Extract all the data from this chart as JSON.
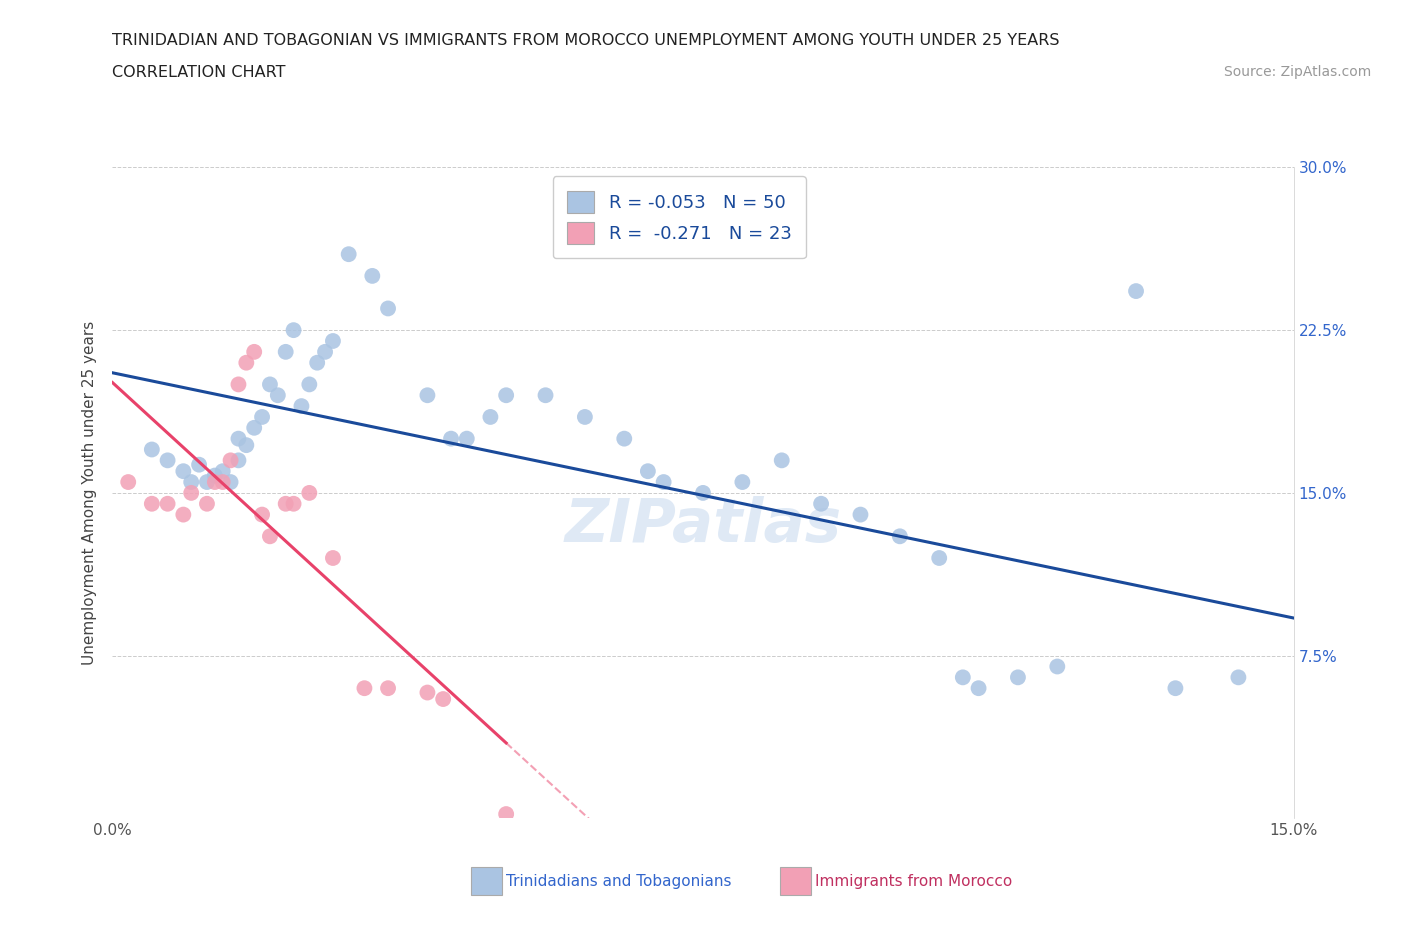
{
  "title_line1": "TRINIDADIAN AND TOBAGONIAN VS IMMIGRANTS FROM MOROCCO UNEMPLOYMENT AMONG YOUTH UNDER 25 YEARS",
  "title_line2": "CORRELATION CHART",
  "source": "Source: ZipAtlas.com",
  "ylabel": "Unemployment Among Youth under 25 years",
  "blue_label": "Trinidadians and Tobagonians",
  "pink_label": "Immigrants from Morocco",
  "blue_R": "-0.053",
  "blue_N": "50",
  "pink_R": "-0.271",
  "pink_N": "23",
  "blue_color": "#aac4e2",
  "blue_line_color": "#1a4a9a",
  "pink_color": "#f2a0b5",
  "pink_line_color": "#e8426a",
  "watermark": "ZIPatlas",
  "xlim": [
    0.0,
    0.15
  ],
  "ylim": [
    0.0,
    0.3
  ],
  "blue_scatter_x": [
    0.005,
    0.007,
    0.009,
    0.01,
    0.011,
    0.012,
    0.013,
    0.014,
    0.015,
    0.016,
    0.016,
    0.017,
    0.018,
    0.019,
    0.02,
    0.021,
    0.022,
    0.023,
    0.024,
    0.025,
    0.026,
    0.027,
    0.028,
    0.03,
    0.033,
    0.035,
    0.04,
    0.043,
    0.045,
    0.048,
    0.05,
    0.055,
    0.06,
    0.065,
    0.068,
    0.07,
    0.075,
    0.08,
    0.085,
    0.09,
    0.095,
    0.1,
    0.105,
    0.108,
    0.11,
    0.115,
    0.12,
    0.13,
    0.135,
    0.143
  ],
  "blue_scatter_y": [
    0.17,
    0.165,
    0.16,
    0.155,
    0.163,
    0.155,
    0.158,
    0.16,
    0.155,
    0.165,
    0.175,
    0.172,
    0.18,
    0.185,
    0.2,
    0.195,
    0.215,
    0.225,
    0.19,
    0.2,
    0.21,
    0.215,
    0.22,
    0.26,
    0.25,
    0.235,
    0.195,
    0.175,
    0.175,
    0.185,
    0.195,
    0.195,
    0.185,
    0.175,
    0.16,
    0.155,
    0.15,
    0.155,
    0.165,
    0.145,
    0.14,
    0.13,
    0.12,
    0.065,
    0.06,
    0.065,
    0.07,
    0.243,
    0.06,
    0.065
  ],
  "pink_scatter_x": [
    0.002,
    0.005,
    0.007,
    0.009,
    0.01,
    0.012,
    0.013,
    0.014,
    0.015,
    0.016,
    0.017,
    0.018,
    0.019,
    0.02,
    0.022,
    0.023,
    0.025,
    0.028,
    0.032,
    0.035,
    0.04,
    0.042,
    0.05
  ],
  "pink_scatter_y": [
    0.155,
    0.145,
    0.145,
    0.14,
    0.15,
    0.145,
    0.155,
    0.155,
    0.165,
    0.2,
    0.21,
    0.215,
    0.14,
    0.13,
    0.145,
    0.145,
    0.15,
    0.12,
    0.06,
    0.06,
    0.058,
    0.055,
    0.002
  ]
}
